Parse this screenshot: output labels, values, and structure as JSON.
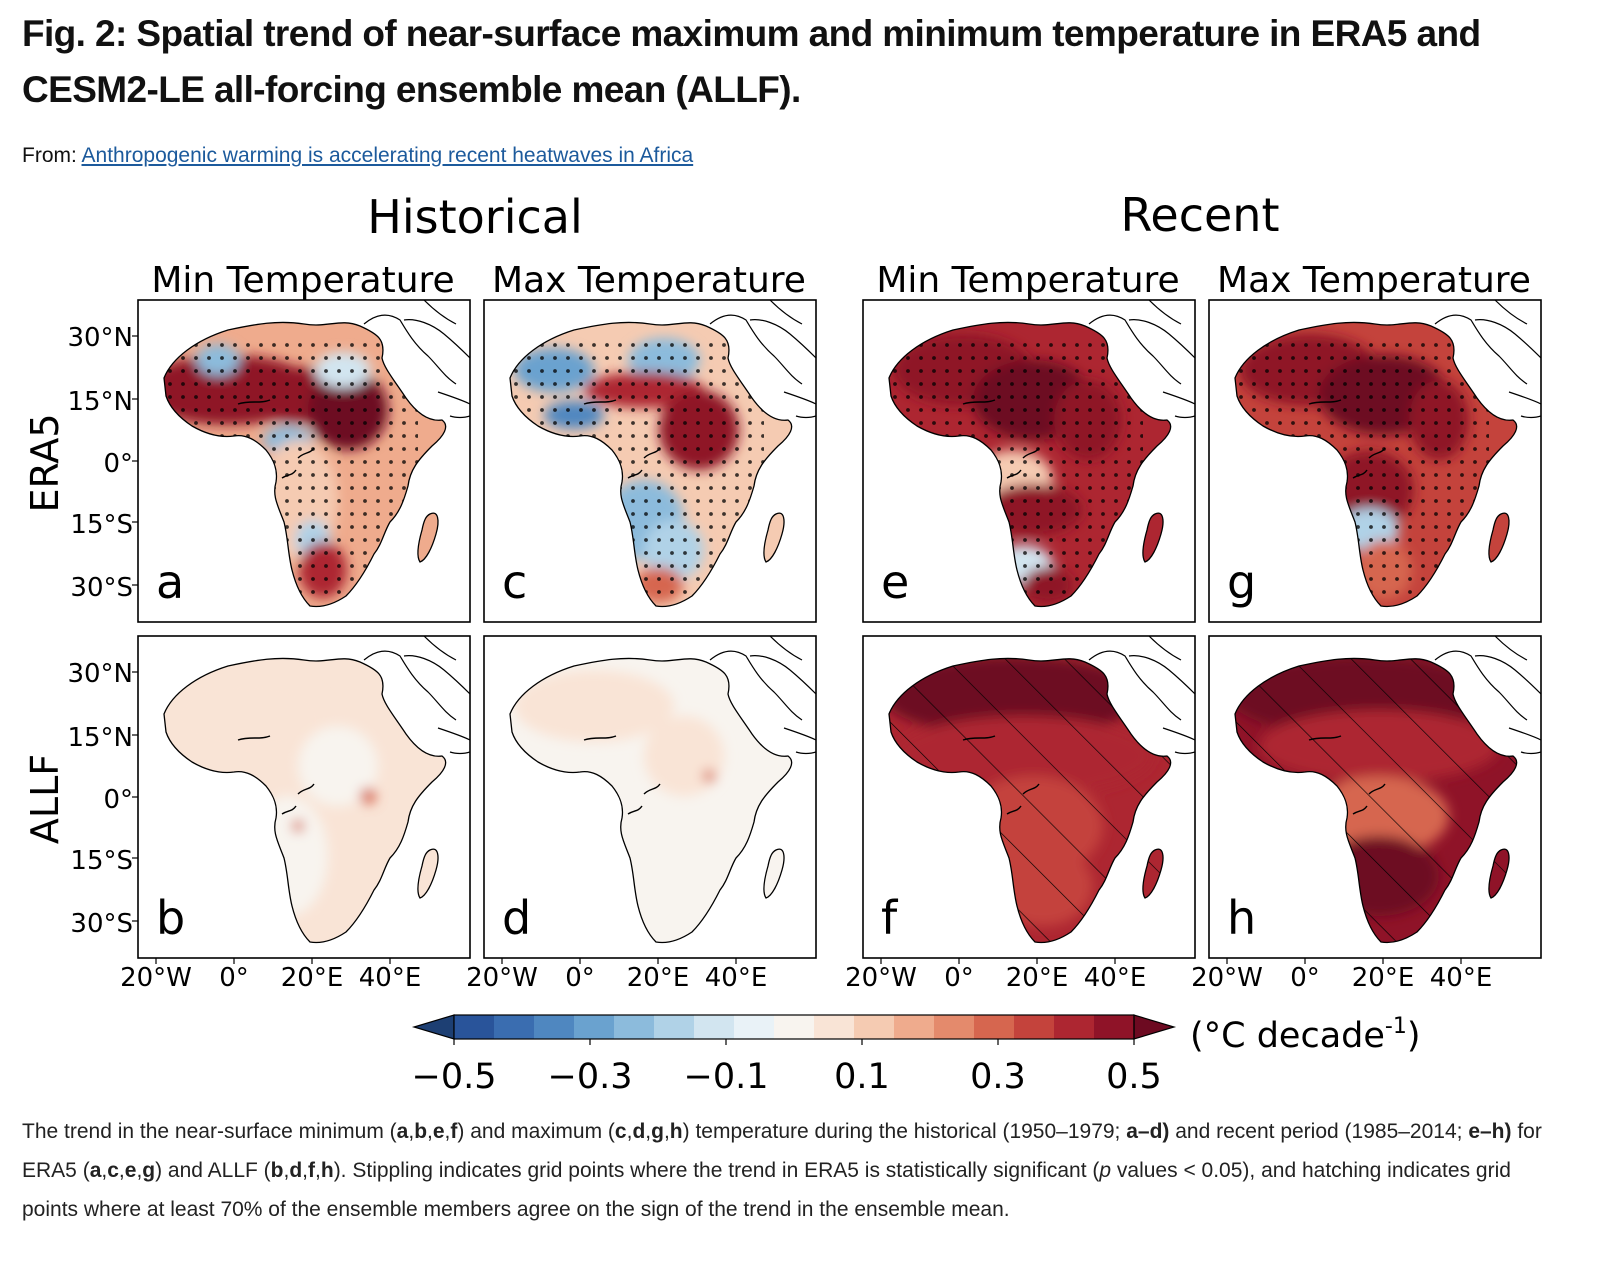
{
  "title": "Fig. 2: Spatial trend of near-surface maximum and minimum temperature in ERA5 and CESM2-LE all-forcing ensemble mean (ALLF).",
  "from_label": "From:",
  "from_link": "Anthropogenic warming is accelerating recent heatwaves in Africa",
  "figure": {
    "group_titles": [
      "Historical",
      "Recent"
    ],
    "column_titles": [
      "Min Temperature",
      "Max Temperature",
      "Min Temperature",
      "Max Temperature"
    ],
    "row_labels": [
      "ERA5",
      "ALLF"
    ],
    "lat_ticks": [
      "30°N",
      "15°N",
      "0°",
      "15°S",
      "30°S"
    ],
    "lon_ticks": [
      "20°W",
      "0°",
      "20°E",
      "40°E"
    ],
    "panel_letters": [
      "a",
      "c",
      "e",
      "g",
      "b",
      "d",
      "f",
      "h"
    ],
    "colorbar": {
      "tick_labels": [
        "−0.5",
        "−0.3",
        "−0.1",
        "0.1",
        "0.3",
        "0.5"
      ],
      "unit_label": "(°C  decade",
      "unit_superscript": "-1",
      "unit_close": ")",
      "colors": [
        "#1d3f73",
        "#29549a",
        "#3a6db0",
        "#4f87c0",
        "#6aa2cf",
        "#8cbbdc",
        "#b0d2e7",
        "#d2e5f0",
        "#e9f2f7",
        "#f8f4ef",
        "#f9e4d6",
        "#f5cbb2",
        "#efab8d",
        "#e48a6c",
        "#d6664f",
        "#c4433c",
        "#ad2631",
        "#8f1328",
        "#6d0a21"
      ]
    },
    "panels": [
      {
        "letter": "a",
        "row": "ERA5",
        "period": "Historical",
        "variable": "Min Temperature",
        "overall_level": 0.18,
        "hatching": false,
        "stippling": true
      },
      {
        "letter": "c",
        "row": "ERA5",
        "period": "Historical",
        "variable": "Max Temperature",
        "overall_level": 0.12,
        "hatching": false,
        "stippling": true
      },
      {
        "letter": "e",
        "row": "ERA5",
        "period": "Recent",
        "variable": "Min Temperature",
        "overall_level": 0.38,
        "hatching": false,
        "stippling": true
      },
      {
        "letter": "g",
        "row": "ERA5",
        "period": "Recent",
        "variable": "Max Temperature",
        "overall_level": 0.36,
        "hatching": false,
        "stippling": true
      },
      {
        "letter": "b",
        "row": "ALLF",
        "period": "Historical",
        "variable": "Min Temperature",
        "overall_level": 0.03,
        "hatching": false,
        "stippling": false
      },
      {
        "letter": "d",
        "row": "ALLF",
        "period": "Historical",
        "variable": "Max Temperature",
        "overall_level": 0.02,
        "hatching": false,
        "stippling": false
      },
      {
        "letter": "f",
        "row": "ALLF",
        "period": "Recent",
        "variable": "Min Temperature",
        "overall_level": 0.4,
        "hatching": true,
        "stippling": false
      },
      {
        "letter": "h",
        "row": "ALLF",
        "period": "Recent",
        "variable": "Max Temperature",
        "overall_level": 0.42,
        "hatching": true,
        "stippling": false
      }
    ]
  },
  "caption": {
    "t1": "The trend in the near-surface minimum (",
    "b1": "a",
    "t2": ",",
    "b2": "b",
    "t3": ",",
    "b3": "e",
    "t4": ",",
    "b4": "f",
    "t5": ") and maximum (",
    "b5": "c",
    "t6": ",",
    "b6": "d",
    "t7": ",",
    "b7": "g",
    "t8": ",",
    "b8": "h",
    "t9": ") temperature during the historical (1950–1979; ",
    "b9": "a–d)",
    "t10": " and recent period (1985–2014; ",
    "b10": "e–h)",
    "t11": " for ERA5 (",
    "b11": "a",
    "t12": ",",
    "b12": "c",
    "t13": ",",
    "b13": "e",
    "t14": ",",
    "b14": "g",
    "t15": ") and ALLF (",
    "b15": "b",
    "t16": ",",
    "b16": "d",
    "t17": ",",
    "b17": "f",
    "t18": ",",
    "b18": "h",
    "t19": "). Stippling indicates grid points where the trend in ERA5 is statistically significant (",
    "i1": "p",
    "t20": " values < 0.05), and hatching indicates grid points where at least 70% of the ensemble members agree on the sign of the trend in the ensemble mean."
  }
}
